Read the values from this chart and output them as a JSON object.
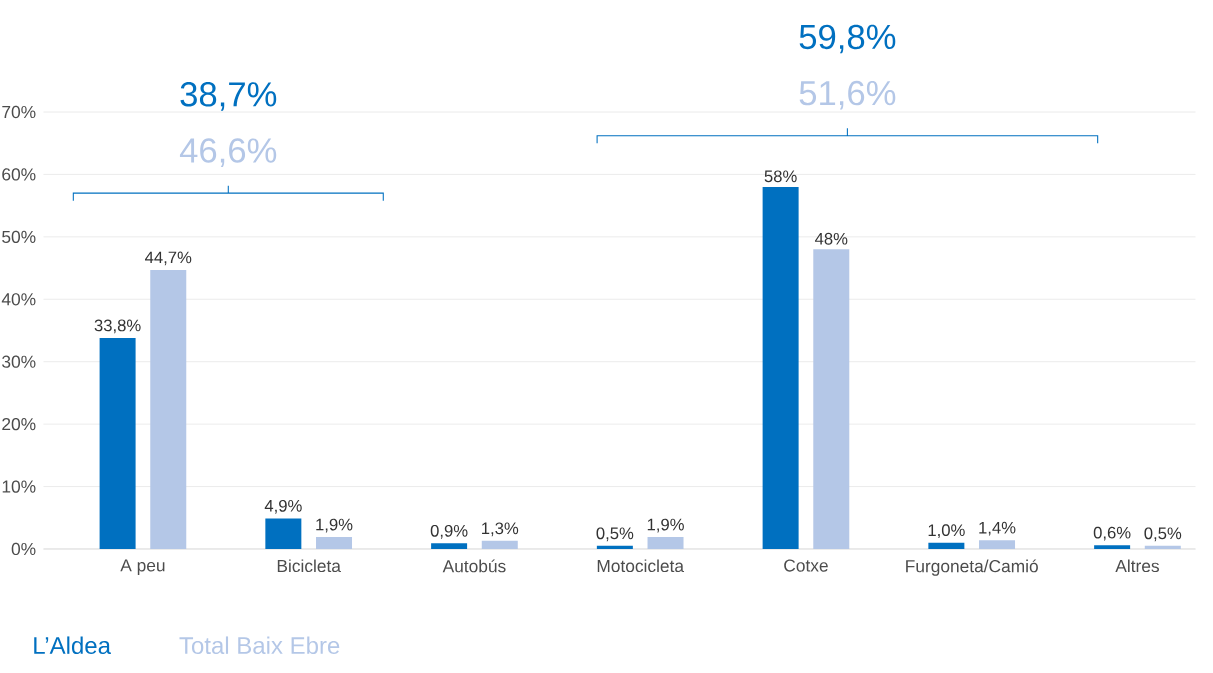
{
  "chart_data": {
    "type": "bar",
    "categories": [
      "A peu",
      "Bicicleta",
      "Autobús",
      "Motocicleta",
      "Cotxe",
      "Furgoneta/Camió",
      "Altres"
    ],
    "series": [
      {
        "name": "L’Aldea",
        "color": "#0070c0",
        "values": [
          33.8,
          4.9,
          0.9,
          0.5,
          58,
          1.0,
          0.6
        ],
        "value_labels": [
          "33,8%",
          "4,9%",
          "0,9%",
          "0,5%",
          "58%",
          "1,0%",
          "0,6%"
        ]
      },
      {
        "name": "Total Baix Ebre",
        "color": "#b4c7e7",
        "values": [
          44.7,
          1.9,
          1.3,
          1.9,
          48,
          1.4,
          0.5
        ],
        "value_labels": [
          "44,7%",
          "1,9%",
          "1,3%",
          "1,9%",
          "48%",
          "1,4%",
          "0,5%"
        ]
      }
    ],
    "ylim": [
      0,
      70
    ],
    "yticks": [
      {
        "value": 0,
        "label": "0%"
      },
      {
        "value": 10,
        "label": "10%"
      },
      {
        "value": 20,
        "label": "20%"
      },
      {
        "value": 30,
        "label": "30%"
      },
      {
        "value": 40,
        "label": "40%"
      },
      {
        "value": 50,
        "label": "50%"
      },
      {
        "value": 60,
        "label": "60%"
      },
      {
        "value": 70,
        "label": "70%"
      }
    ],
    "grid": "y",
    "legend": "bottom left",
    "annotations": [
      "38,7%",
      "46,6%",
      "59,8%",
      "51,6%"
    ]
  }
}
